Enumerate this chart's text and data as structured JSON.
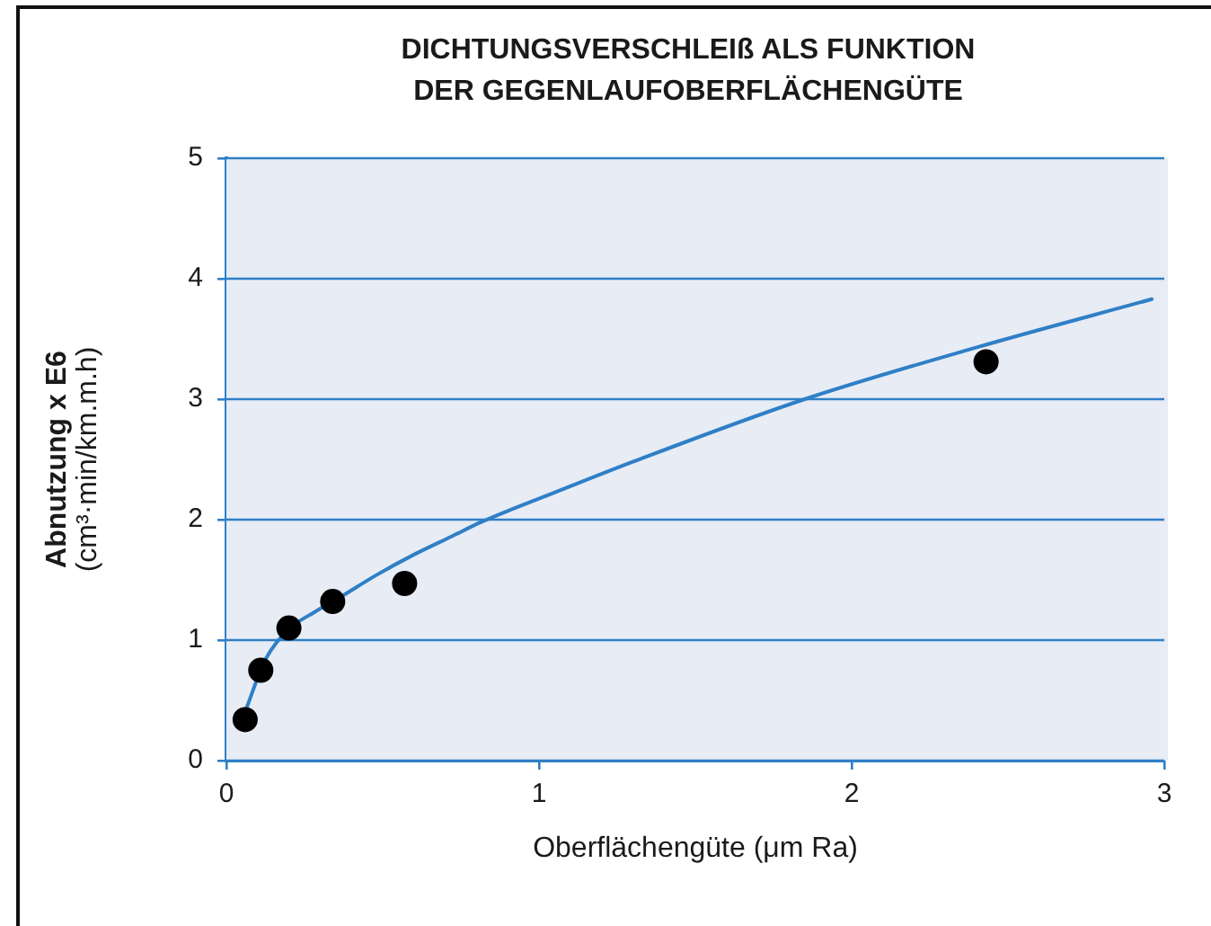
{
  "chart_data": {
    "type": "scatter",
    "title": "DICHTUNGSVERSCHLEIß ALS FUNKTION\nDER GEGENLAUFOBERFLÄCHENGÜTE",
    "xlabel": "Oberflächengüte (μm Ra)",
    "ylabel": "Abnutzung x E6\n(cm³·min/km.m.h)",
    "xlim": [
      0,
      3
    ],
    "xticks": [
      0,
      1,
      2,
      3
    ],
    "ylim": [
      0,
      5
    ],
    "yticks": [
      0,
      1,
      2,
      3,
      4,
      5
    ],
    "grid": "y",
    "series": [
      {
        "color": "#000000",
        "marker": "circle",
        "x": [
          0.06,
          0.11,
          0.2,
          0.34,
          0.57,
          2.43
        ],
        "values": [
          0.34,
          0.75,
          1.1,
          1.32,
          1.47,
          3.31
        ]
      },
      {
        "type": "line",
        "color": "#2f7fc6",
        "marker": "none",
        "x": [
          0.065,
          0.123,
          0.2,
          0.28,
          0.36,
          0.48,
          0.6,
          0.72,
          0.815,
          0.917,
          1.035,
          1.3,
          1.85,
          2.4,
          2.96
        ],
        "values": [
          0.44,
          0.83,
          1.09,
          1.23,
          1.35,
          1.54,
          1.71,
          1.86,
          1.98,
          2.09,
          2.21,
          2.48,
          3.0,
          3.43,
          3.83
        ]
      }
    ]
  }
}
